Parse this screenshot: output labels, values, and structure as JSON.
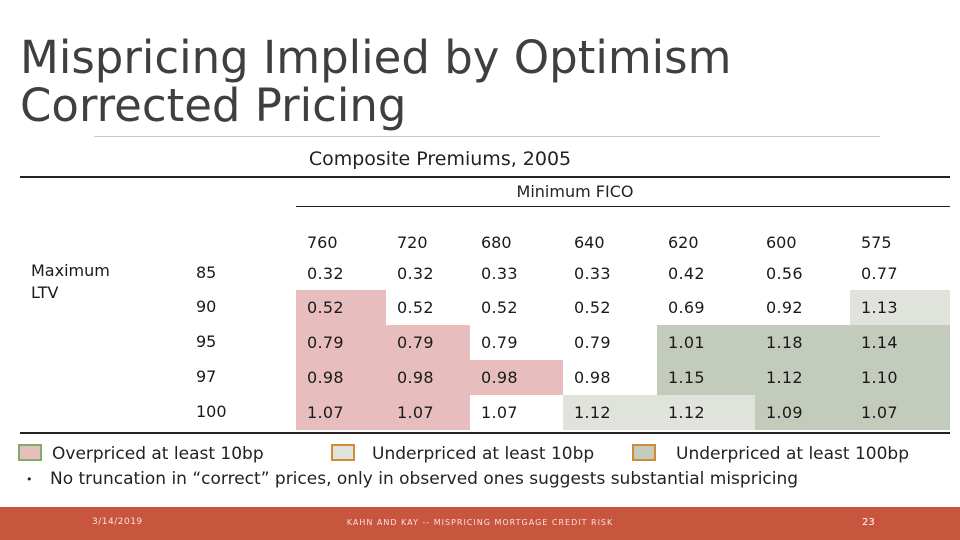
{
  "title_line1": "Mispricing Implied by Optimism",
  "title_line2": "Corrected Pricing",
  "subtitle": "Composite Premiums, 2005",
  "column_group_label": "Minimum FICO",
  "row_group_label_line1": "Maximum",
  "row_group_label_line2": "LTV",
  "fico_headers": [
    "760",
    "720",
    "680",
    "640",
    "620",
    "600",
    "575"
  ],
  "rows": [
    {
      "ltv": "85",
      "values": [
        "0.32",
        "0.32",
        "0.33",
        "0.33",
        "0.42",
        "0.56",
        "0.77"
      ],
      "shade": [
        "none",
        "none",
        "none",
        "none",
        "none",
        "none",
        "none"
      ]
    },
    {
      "ltv": "90",
      "values": [
        "0.52",
        "0.52",
        "0.52",
        "0.52",
        "0.69",
        "0.92",
        "1.13"
      ],
      "shade": [
        "red",
        "none",
        "none",
        "none",
        "none",
        "none",
        "light"
      ]
    },
    {
      "ltv": "95",
      "values": [
        "0.79",
        "0.79",
        "0.79",
        "0.79",
        "1.01",
        "1.18",
        "1.14"
      ],
      "shade": [
        "red",
        "red",
        "none",
        "none",
        "dark",
        "dark",
        "dark"
      ]
    },
    {
      "ltv": "97",
      "values": [
        "0.98",
        "0.98",
        "0.98",
        "0.98",
        "1.15",
        "1.12",
        "1.10"
      ],
      "shade": [
        "red",
        "red",
        "red",
        "none",
        "dark",
        "dark",
        "dark"
      ]
    },
    {
      "ltv": "100",
      "values": [
        "1.07",
        "1.07",
        "1.07",
        "1.12",
        "1.12",
        "1.09",
        "1.07"
      ],
      "shade": [
        "red",
        "red",
        "none",
        "light",
        "light",
        "dark",
        "dark"
      ]
    }
  ],
  "legend": [
    {
      "label": "Overpriced at least 10bp",
      "swatch": "#e7bdbd",
      "border": "#7fae6a"
    },
    {
      "label": "Underpriced at least 10bp",
      "swatch": "#e0e3dc",
      "border": "#d08a3a"
    },
    {
      "label": "Underpriced at least 100bp",
      "swatch": "#c3cbbc",
      "border": "#d08a3a"
    }
  ],
  "bullet": "•",
  "bullet_text": "No truncation in “correct” prices, only in observed ones suggests substantial mispricing",
  "footer": {
    "date": "3/14/2019",
    "center": "KAHN AND KAY -- MISPRICING MORTGAGE CREDIT RISK",
    "page": "23"
  },
  "colors": {
    "red": "#e7bdbd",
    "light": "#e0e3dc",
    "dark": "#c3cbbc",
    "footer": "#c8553d"
  }
}
